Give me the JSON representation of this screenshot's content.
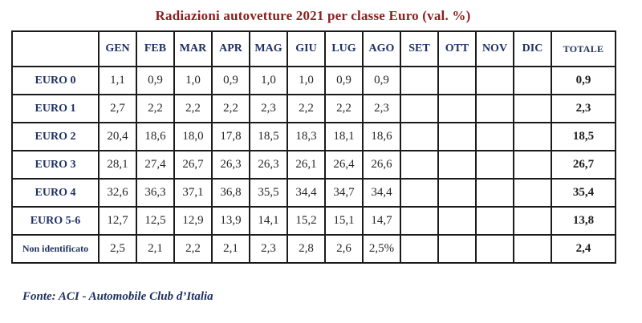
{
  "title": "Radiazioni autovetture 2021 per classe Euro (val. %)",
  "source_note": "Fonte: ACI - Automobile Club d’Italia",
  "colors": {
    "title_text": "#8b1e1e",
    "header_text": "#1f3163",
    "value_text": "#262626",
    "border": "#1b1b1b",
    "background": "#ffffff"
  },
  "chart_data": {
    "type": "table",
    "title": "Radiazioni autovetture 2021 per classe Euro (val. %)",
    "columns": [
      "GEN",
      "FEB",
      "MAR",
      "APR",
      "MAG",
      "GIU",
      "LUG",
      "AGO",
      "SET",
      "OTT",
      "NOV",
      "DIC",
      "TOTALE"
    ],
    "rows": [
      {
        "label": "EURO 0",
        "values": [
          "1,1",
          "0,9",
          "1,0",
          "0,9",
          "1,0",
          "1,0",
          "0,9",
          "0,9",
          "",
          "",
          "",
          ""
        ],
        "total": "0,9"
      },
      {
        "label": "EURO 1",
        "values": [
          "2,7",
          "2,2",
          "2,2",
          "2,2",
          "2,3",
          "2,2",
          "2,2",
          "2,3",
          "",
          "",
          "",
          ""
        ],
        "total": "2,3"
      },
      {
        "label": "EURO 2",
        "values": [
          "20,4",
          "18,6",
          "18,0",
          "17,8",
          "18,5",
          "18,3",
          "18,1",
          "18,6",
          "",
          "",
          "",
          ""
        ],
        "total": "18,5"
      },
      {
        "label": "EURO 3",
        "values": [
          "28,1",
          "27,4",
          "26,7",
          "26,3",
          "26,3",
          "26,1",
          "26,4",
          "26,6",
          "",
          "",
          "",
          ""
        ],
        "total": "26,7"
      },
      {
        "label": "EURO 4",
        "values": [
          "32,6",
          "36,3",
          "37,1",
          "36,8",
          "35,5",
          "34,4",
          "34,7",
          "34,4",
          "",
          "",
          "",
          ""
        ],
        "total": "35,4"
      },
      {
        "label": "EURO 5-6",
        "values": [
          "12,7",
          "12,5",
          "12,9",
          "13,9",
          "14,1",
          "15,2",
          "15,1",
          "14,7",
          "",
          "",
          "",
          ""
        ],
        "total": "13,8"
      },
      {
        "label": "Non identificato",
        "values": [
          "2,5",
          "2,1",
          "2,2",
          "2,1",
          "2,3",
          "2,8",
          "2,6",
          "2,5%",
          "",
          "",
          "",
          ""
        ],
        "total": "2,4"
      }
    ],
    "layout": {
      "legend": "none",
      "grid": "full-borders",
      "empty_columns": [
        "SET",
        "OTT",
        "NOV",
        "DIC"
      ]
    }
  }
}
